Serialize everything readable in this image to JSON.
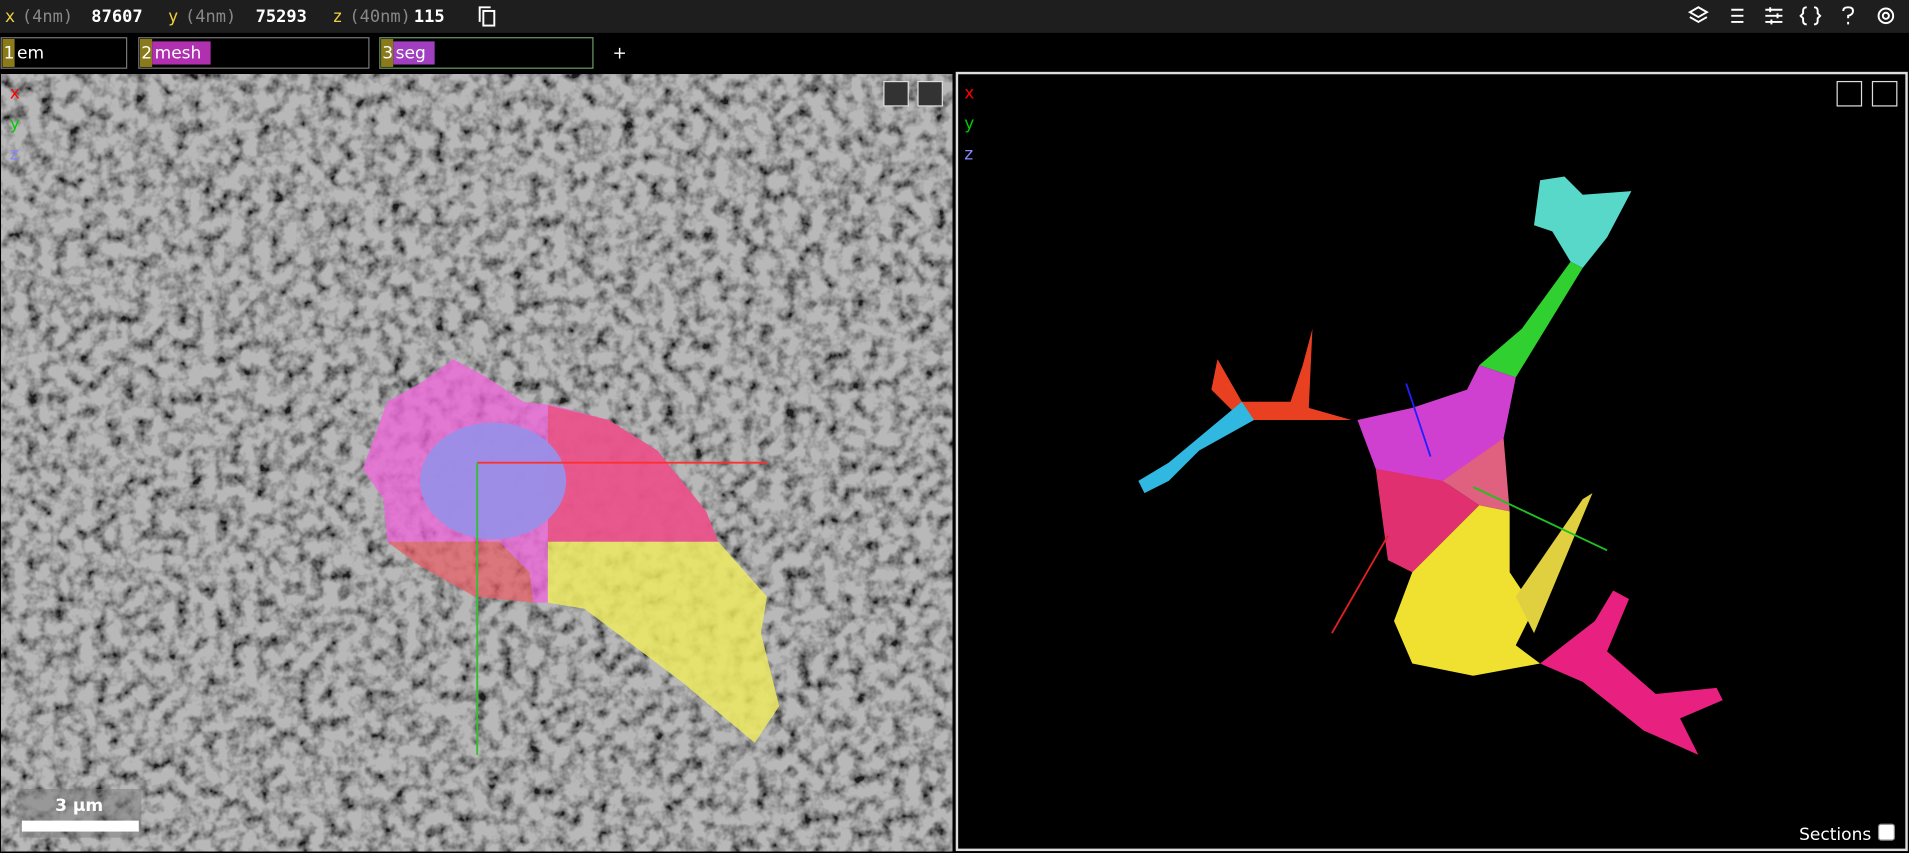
{
  "position": {
    "x": {
      "label": "x",
      "unit": "(4nm)",
      "value": 87607
    },
    "y": {
      "label": "y",
      "unit": "(4nm)",
      "value": 75293
    },
    "z": {
      "label": "z",
      "unit": "(40nm)",
      "value": 115
    }
  },
  "layers": [
    {
      "index": "1",
      "name": "em"
    },
    {
      "index": "2",
      "name": "mesh"
    },
    {
      "index": "3",
      "name": "seg"
    }
  ],
  "add_layer": "+",
  "left_panel": {
    "axes": [
      "x",
      "y",
      "z"
    ],
    "scale_bar": "3 µm"
  },
  "right_panel": {
    "axes": [
      "x",
      "y",
      "z"
    ],
    "sections": "Sections"
  }
}
